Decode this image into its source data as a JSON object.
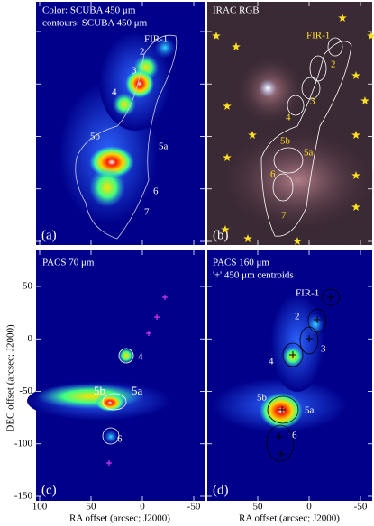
{
  "panels": [
    {
      "id": "(a)",
      "title": "Color: SCUBA 450 μm",
      "subtitle": "contours: SCUBA 450 μm",
      "labels": [
        "FIR-1",
        "2",
        "3",
        "4",
        "5b",
        "5a",
        "6",
        "7"
      ]
    },
    {
      "id": "(b)",
      "title": "IRAC RGB",
      "labels": [
        "FIR-1",
        "2",
        "3",
        "4",
        "5b",
        "5a",
        "6",
        "7"
      ]
    },
    {
      "id": "(c)",
      "title": "PACS 70 μm",
      "labels": [
        "4",
        "5b",
        "5a",
        "6"
      ]
    },
    {
      "id": "(d)",
      "title": "PACS 160 μm",
      "subtitle": "'+' 450 μm centroids",
      "labels": [
        "FIR-1",
        "2",
        "3",
        "4",
        "5b",
        "5a",
        "6"
      ]
    }
  ],
  "y_axis": {
    "label": "DEC offset (arcsec; J2000)",
    "ticks": [
      50,
      0,
      -50,
      -100,
      -150
    ]
  },
  "x_axis": {
    "label": "RA offset (arcsec; J2000)",
    "left_ticks": [
      100,
      50,
      0,
      -50
    ],
    "right_ticks": [
      50,
      0,
      -50
    ]
  }
}
